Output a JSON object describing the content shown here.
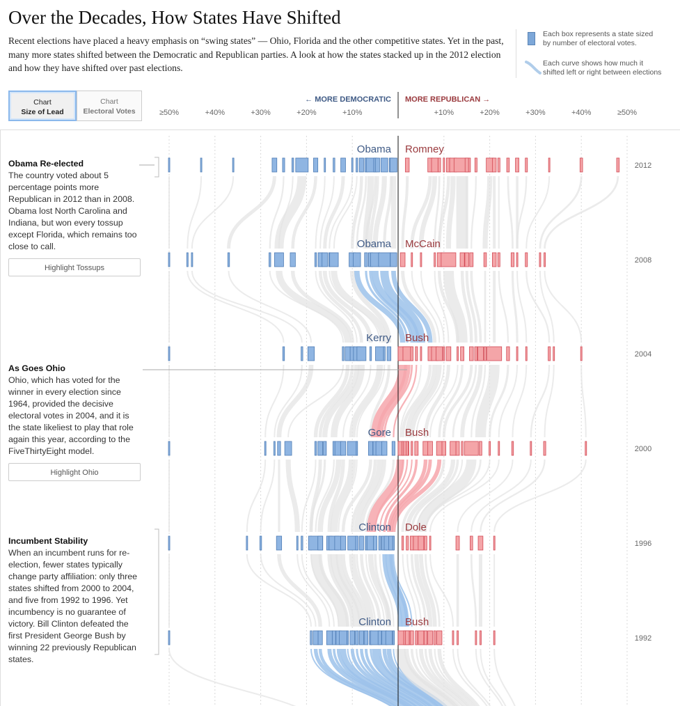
{
  "header": {
    "title": "Over the Decades, How States Have Shifted",
    "intro": "Recent elections have placed a heavy emphasis on “swing states” — Ohio, Florida and the other competitive states. Yet in the past, many more states shifted between the Democratic and Republican parties. A look at how the states stacked up in the 2012 election and how they have shifted over past elections."
  },
  "legend": {
    "box_text_1": "Each box represents a state sized",
    "box_text_2": "by number of electoral votes.",
    "curve_text_1": "Each curve shows how much it",
    "curve_text_2": "shifted left or right between elections"
  },
  "toggles": [
    {
      "line1": "Chart",
      "line2": "Size of Lead",
      "active": true
    },
    {
      "line1": "Chart",
      "line2": "Electoral Votes",
      "active": false
    }
  ],
  "notes": [
    {
      "heading": "Obama Re-elected",
      "body": "The country voted about 5 percentage points more Republican in 2012 than in 2008. Obama lost North Carolina and Indiana, but won every tossup except Florida, which remains too close to call.",
      "button": "Highlight Tossups"
    },
    {
      "heading": "As Goes Ohio",
      "body": "Ohio, which has voted for the winner in every election since 1964, provided the decisive electoral votes in 2004, and it is the state likeliest to play that role again this year, according to the FiveThirtyEight model.",
      "button": "Highlight Ohio"
    },
    {
      "heading": "Incumbent Stability",
      "body": "When an incumbent runs for re-election, fewer states typically change party affiliation: only three states shifted from 2000 to 2004, and five from 1992 to 1996. Yet incumbency is no guarantee of victory. Bill Clinton defeated the first President George Bush by winning 22 previously Republican states."
    }
  ],
  "colors": {
    "dem_fill": "#8fb5e2",
    "dem_stroke": "#4f7db5",
    "rep_fill": "#f4a5a8",
    "rep_stroke": "#d24a55",
    "curve": "#e4e4e4",
    "dem_curve": "#9cc2ea",
    "rep_curve": "#f6a6ab",
    "dem_text": "#3f5a85",
    "rep_text": "#9a3a3e"
  },
  "chart_data": {
    "type": "scatter",
    "direction_left": "← MORE DEMOCRATIC",
    "direction_right": "MORE REPUBLICAN →",
    "ticks": [
      {
        "value": -50,
        "label": "≥50%"
      },
      {
        "value": -40,
        "label": "+40%"
      },
      {
        "value": -30,
        "label": "+30%"
      },
      {
        "value": -20,
        "label": "+20%"
      },
      {
        "value": -10,
        "label": "+10%"
      },
      {
        "value": 10,
        "label": "+10%"
      },
      {
        "value": 20,
        "label": "+20%"
      },
      {
        "value": 30,
        "label": "+30%"
      },
      {
        "value": 40,
        "label": "+40%"
      },
      {
        "value": 50,
        "label": "≥50%"
      }
    ],
    "xlim": [
      -50,
      50
    ],
    "elections": [
      {
        "year": "2012",
        "dem": "Obama",
        "rep": "Romney",
        "states": [
          [
            -50,
            3
          ],
          [
            -43,
            3
          ],
          [
            -36,
            3
          ],
          [
            -27,
            11
          ],
          [
            -25,
            5
          ],
          [
            -23,
            4
          ],
          [
            -21,
            29
          ],
          [
            -18,
            10
          ],
          [
            -16,
            3
          ],
          [
            -14,
            4
          ],
          [
            -12,
            11
          ],
          [
            -10,
            3
          ],
          [
            -9,
            4
          ],
          [
            -8,
            10
          ],
          [
            -7,
            6
          ],
          [
            -6,
            20
          ],
          [
            -5,
            7
          ],
          [
            -4.5,
            10
          ],
          [
            -3,
            16
          ],
          [
            -1.5,
            9
          ],
          [
            -1,
            16
          ],
          [
            2,
            9
          ],
          [
            7,
            11
          ],
          [
            8,
            15
          ],
          [
            9,
            6
          ],
          [
            10,
            3
          ],
          [
            11,
            10
          ],
          [
            12,
            16
          ],
          [
            14,
            38
          ],
          [
            15,
            8
          ],
          [
            17,
            5
          ],
          [
            20,
            16
          ],
          [
            21,
            9
          ],
          [
            22,
            5
          ],
          [
            24,
            6
          ],
          [
            26,
            8
          ],
          [
            28,
            5
          ],
          [
            33,
            3
          ],
          [
            40,
            6
          ],
          [
            48,
            6
          ]
        ]
      },
      {
        "year": "2008",
        "dem": "Obama",
        "rep": "McCain",
        "states": [
          [
            -50,
            3
          ],
          [
            -46,
            3
          ],
          [
            -45,
            3
          ],
          [
            -37,
            4
          ],
          [
            -28,
            4
          ],
          [
            -26,
            21
          ],
          [
            -23,
            12
          ],
          [
            -18,
            4
          ],
          [
            -17,
            10
          ],
          [
            -16,
            13
          ],
          [
            -15,
            3
          ],
          [
            -14,
            20
          ],
          [
            -10,
            15
          ],
          [
            -9,
            17
          ],
          [
            -7,
            7
          ],
          [
            -6,
            10
          ],
          [
            -5,
            21
          ],
          [
            -3,
            27
          ],
          [
            -1,
            15
          ],
          [
            1,
            11
          ],
          [
            3,
            3
          ],
          [
            5,
            3
          ],
          [
            8,
            3
          ],
          [
            9,
            10
          ],
          [
            11,
            34
          ],
          [
            14,
            10
          ],
          [
            15,
            9
          ],
          [
            16,
            8
          ],
          [
            19,
            6
          ],
          [
            21,
            9
          ],
          [
            22,
            5
          ],
          [
            25,
            7
          ],
          [
            26,
            3
          ],
          [
            28,
            5
          ],
          [
            31,
            3
          ],
          [
            32,
            3
          ]
        ]
      },
      {
        "year": "2004",
        "dem": "Kerry",
        "rep": "Bush",
        "states": [
          [
            -50,
            3
          ],
          [
            -25,
            4
          ],
          [
            -21,
            4
          ],
          [
            -19,
            15
          ],
          [
            -12,
            4
          ],
          [
            -11,
            12
          ],
          [
            -10,
            10
          ],
          [
            -9,
            16
          ],
          [
            -8,
            21
          ],
          [
            -6,
            4
          ],
          [
            -4,
            20
          ],
          [
            -3,
            4
          ],
          [
            -2,
            9
          ],
          [
            1,
            27
          ],
          [
            2,
            20
          ],
          [
            3,
            6
          ],
          [
            4,
            5
          ],
          [
            5,
            3
          ],
          [
            7,
            10
          ],
          [
            8,
            15
          ],
          [
            9,
            15
          ],
          [
            10,
            3
          ],
          [
            11,
            11
          ],
          [
            13,
            3
          ],
          [
            14,
            8
          ],
          [
            16,
            9
          ],
          [
            17,
            6
          ],
          [
            18,
            13
          ],
          [
            19,
            5
          ],
          [
            21,
            34
          ],
          [
            24,
            7
          ],
          [
            26,
            3
          ],
          [
            28,
            3
          ],
          [
            33,
            5
          ],
          [
            34,
            3
          ],
          [
            40,
            3
          ]
        ]
      },
      {
        "year": "2000",
        "dem": "Gore",
        "rep": "Bush",
        "states": [
          [
            -50,
            3
          ],
          [
            -29,
            3
          ],
          [
            -27,
            3
          ],
          [
            -26,
            7
          ],
          [
            -24,
            16
          ],
          [
            -18,
            4
          ],
          [
            -17,
            11
          ],
          [
            -16,
            7
          ],
          [
            -14,
            5
          ],
          [
            -13,
            17
          ],
          [
            -12,
            12
          ],
          [
            -10,
            23
          ],
          [
            -9,
            3
          ],
          [
            -6,
            10
          ],
          [
            -5,
            10
          ],
          [
            -4,
            18
          ],
          [
            -3,
            12
          ],
          [
            -1,
            7
          ],
          [
            0.5,
            25
          ],
          [
            1,
            4
          ],
          [
            2,
            5
          ],
          [
            3,
            4
          ],
          [
            4,
            8
          ],
          [
            6,
            12
          ],
          [
            7,
            11
          ],
          [
            9,
            13
          ],
          [
            10,
            9
          ],
          [
            12,
            14
          ],
          [
            13,
            8
          ],
          [
            14,
            4
          ],
          [
            16,
            32
          ],
          [
            18,
            6
          ],
          [
            20,
            3
          ],
          [
            22,
            3
          ],
          [
            25,
            4
          ],
          [
            29,
            3
          ],
          [
            32,
            5
          ],
          [
            41,
            3
          ]
        ]
      },
      {
        "year": "1996",
        "dem": "Clinton",
        "rep": "Dole",
        "states": [
          [
            -50,
            3
          ],
          [
            -33,
            3
          ],
          [
            -30,
            4
          ],
          [
            -26,
            12
          ],
          [
            -22,
            3
          ],
          [
            -21,
            4
          ],
          [
            -19,
            3
          ],
          [
            -18,
            33
          ],
          [
            -17,
            11
          ],
          [
            -15,
            13
          ],
          [
            -14,
            23
          ],
          [
            -13,
            18
          ],
          [
            -12,
            12
          ],
          [
            -10,
            21
          ],
          [
            -9,
            6
          ],
          [
            -8,
            10
          ],
          [
            -7,
            4
          ],
          [
            -6,
            17
          ],
          [
            -5,
            8
          ],
          [
            -4,
            5
          ],
          [
            -3,
            13
          ],
          [
            -2,
            22
          ],
          [
            -1.5,
            12
          ],
          [
            -1,
            4
          ],
          [
            1,
            4
          ],
          [
            2,
            5
          ],
          [
            3,
            8
          ],
          [
            4,
            14
          ],
          [
            5,
            13
          ],
          [
            6,
            6
          ],
          [
            7,
            3
          ],
          [
            13,
            8
          ],
          [
            16,
            6
          ],
          [
            18,
            11
          ],
          [
            21,
            3
          ]
        ]
      },
      {
        "year": "1992",
        "dem": "Clinton",
        "rep": "Bush",
        "states": [
          [
            -50,
            3
          ],
          [
            -19,
            4
          ],
          [
            -18,
            12
          ],
          [
            -17,
            10
          ],
          [
            -15,
            13
          ],
          [
            -14,
            8
          ],
          [
            -13,
            12
          ],
          [
            -12,
            18
          ],
          [
            -11,
            3
          ],
          [
            -10,
            11
          ],
          [
            -9,
            7
          ],
          [
            -8,
            10
          ],
          [
            -7,
            9
          ],
          [
            -6,
            6
          ],
          [
            -5,
            22
          ],
          [
            -4,
            8
          ],
          [
            -3,
            12
          ],
          [
            -2,
            15
          ],
          [
            -1,
            4
          ],
          [
            0.5,
            32
          ],
          [
            1.5,
            6
          ],
          [
            2,
            9
          ],
          [
            3,
            8
          ],
          [
            4,
            5
          ],
          [
            5,
            13
          ],
          [
            6,
            7
          ],
          [
            7,
            11
          ],
          [
            8,
            5
          ],
          [
            9,
            12
          ],
          [
            12,
            3
          ],
          [
            13,
            3
          ],
          [
            17,
            3
          ],
          [
            18,
            3
          ],
          [
            21,
            3
          ]
        ]
      }
    ]
  }
}
